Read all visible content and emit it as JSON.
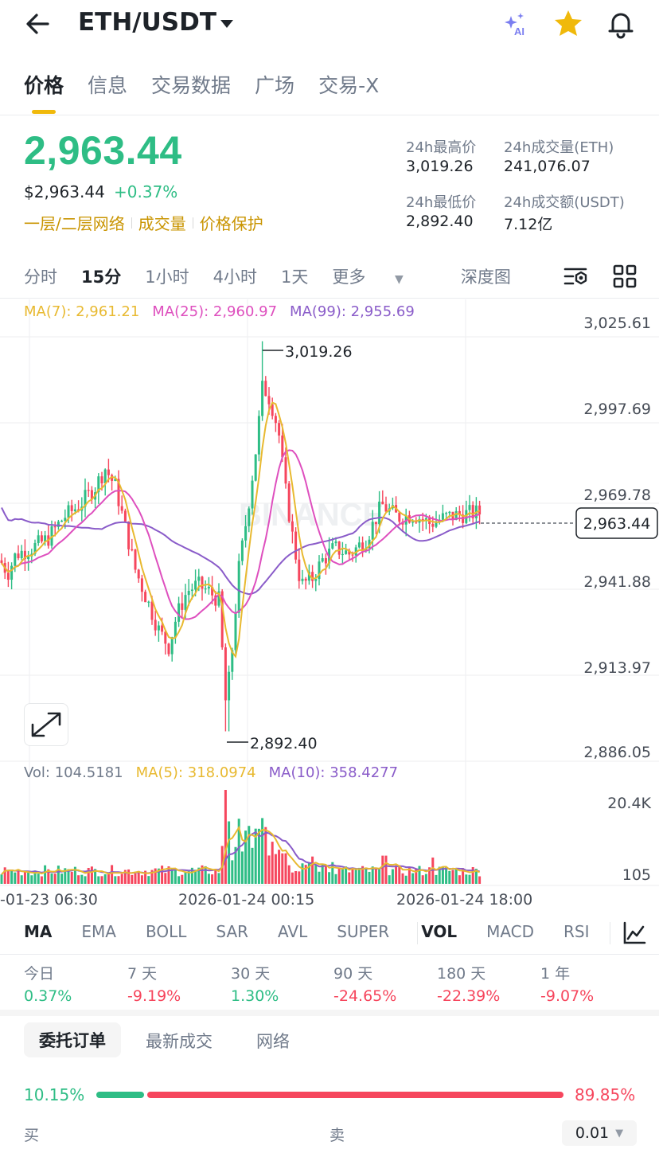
{
  "header": {
    "pair": "ETH/USDT"
  },
  "tabs": [
    "价格",
    "信息",
    "交易数据",
    "广场",
    "交易-X"
  ],
  "price": {
    "last": "2,963.44",
    "usd": "$2,963.44",
    "change": "+0.37%",
    "features": [
      "一层/二层网络",
      "成交量",
      "价格保护"
    ]
  },
  "stats": {
    "high_label": "24h最高价",
    "high_value": "3,019.26",
    "vol_eth_label": "24h成交量(ETH)",
    "vol_eth_value": "241,076.07",
    "low_label": "24h最低价",
    "low_value": "2,892.40",
    "vol_usdt_label": "24h成交额(USDT)",
    "vol_usdt_value": "7.12亿"
  },
  "intervals": [
    "分时",
    "15分",
    "1小时",
    "4小时",
    "1天",
    "更多",
    "深度图"
  ],
  "chart": {
    "ma7": "MA(7): 2,961.21",
    "ma25": "MA(25): 2,960.97",
    "ma99": "MA(99): 2,955.69",
    "watermark": "BINANCE",
    "y_ticks": [
      "3,025.61",
      "2,997.69",
      "2,969.78",
      "2,941.88",
      "2,913.97",
      "2,886.05"
    ],
    "high_marker": "3,019.26",
    "low_marker": "2,892.40",
    "last_marker": "2,963.44",
    "vol": "Vol: 104.5181",
    "vol_ma5": "MA(5): 318.0974",
    "vol_ma10": "MA(10): 358.4277",
    "vol_ticks": [
      "20.4K",
      "105"
    ],
    "x_ticks": [
      "-01-23 06:30",
      "2026-01-24 00:15",
      "2026-01-24 18:00"
    ]
  },
  "colors": {
    "up": "#2ebd85",
    "down": "#f6465d",
    "ma7": "#e8b930",
    "ma25": "#de4fbe",
    "ma99": "#8a5cc9",
    "accent": "#f0b90b"
  },
  "indicators": [
    "MA",
    "EMA",
    "BOLL",
    "SAR",
    "AVL",
    "SUPER",
    "VOL",
    "MACD",
    "RSI"
  ],
  "performance": [
    {
      "label": "今日",
      "value": "0.37%",
      "dir": "up"
    },
    {
      "label": "7 天",
      "value": "-9.19%",
      "dir": "down"
    },
    {
      "label": "30 天",
      "value": "1.30%",
      "dir": "up"
    },
    {
      "label": "90 天",
      "value": "-24.65%",
      "dir": "down"
    },
    {
      "label": "180 天",
      "value": "-22.39%",
      "dir": "down"
    },
    {
      "label": "1 年",
      "value": "-9.07%",
      "dir": "down"
    }
  ],
  "orderbook": {
    "tabs": [
      "委托订单",
      "最新成交",
      "网络"
    ],
    "buy_pct": "10.15%",
    "sell_pct": "89.85%",
    "buy_ratio": 0.1015,
    "buy_label": "买",
    "sell_label": "卖",
    "precision": "0.01"
  }
}
